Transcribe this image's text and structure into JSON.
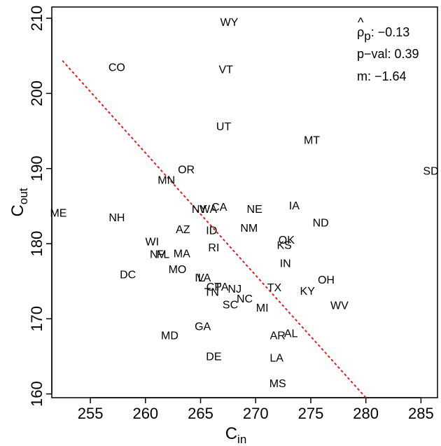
{
  "chart_data": {
    "type": "scatter",
    "title": "",
    "xlabel": {
      "main": "C",
      "sub": "in"
    },
    "ylabel": {
      "main": "C",
      "sub": "out"
    },
    "xlim": [
      251.5,
      286.5
    ],
    "ylim": [
      159.5,
      211.5
    ],
    "x_ticks": [
      255,
      260,
      265,
      270,
      275,
      280,
      285
    ],
    "y_ticks": [
      160,
      170,
      180,
      190,
      200,
      210
    ],
    "grid": false,
    "fit_line": {
      "style": "dotted",
      "color": "#e41a1c",
      "x": [
        252.5,
        280.0
      ],
      "y": [
        204.3,
        159.5
      ]
    },
    "annotations": [
      {
        "label_main": "ρ",
        "label_sub": "p",
        "label_hat": "^",
        "value": ": −0.13"
      },
      {
        "text": "p−val: 0.39"
      },
      {
        "text": "m:  −1.64"
      }
    ],
    "points": [
      {
        "label": "WY",
        "x": 267.6,
        "y": 209.4
      },
      {
        "label": "CO",
        "x": 257.4,
        "y": 203.4
      },
      {
        "label": "VT",
        "x": 267.3,
        "y": 203.1
      },
      {
        "label": "UT",
        "x": 267.1,
        "y": 195.5
      },
      {
        "label": "MT",
        "x": 275.1,
        "y": 193.7
      },
      {
        "label": "OR",
        "x": 263.7,
        "y": 189.8
      },
      {
        "label": "SD",
        "x": 285.9,
        "y": 189.6
      },
      {
        "label": "MN",
        "x": 261.9,
        "y": 188.4
      },
      {
        "label": "IA",
        "x": 273.5,
        "y": 185.0
      },
      {
        "label": "CA",
        "x": 266.7,
        "y": 184.8
      },
      {
        "label": "NY",
        "x": 264.9,
        "y": 184.5
      },
      {
        "label": "WA",
        "x": 265.7,
        "y": 184.5
      },
      {
        "label": "NE",
        "x": 269.9,
        "y": 184.5
      },
      {
        "label": "ME",
        "x": 252.1,
        "y": 184.0
      },
      {
        "label": "NH",
        "x": 257.4,
        "y": 183.4
      },
      {
        "label": "ND",
        "x": 275.9,
        "y": 182.7
      },
      {
        "label": "NM",
        "x": 269.4,
        "y": 182.0
      },
      {
        "label": "AZ",
        "x": 263.4,
        "y": 181.8
      },
      {
        "label": "ID",
        "x": 266.0,
        "y": 181.7
      },
      {
        "label": "OK",
        "x": 272.8,
        "y": 180.4
      },
      {
        "label": "WI",
        "x": 260.6,
        "y": 180.2
      },
      {
        "label": "KS",
        "x": 272.6,
        "y": 179.7
      },
      {
        "label": "RI",
        "x": 266.2,
        "y": 179.4
      },
      {
        "label": "MA",
        "x": 263.3,
        "y": 178.6
      },
      {
        "label": "NV",
        "x": 261.1,
        "y": 178.5
      },
      {
        "label": "FL",
        "x": 261.6,
        "y": 178.5
      },
      {
        "label": "IN",
        "x": 272.7,
        "y": 177.3
      },
      {
        "label": "MO",
        "x": 262.9,
        "y": 176.5
      },
      {
        "label": "DC",
        "x": 258.4,
        "y": 175.8
      },
      {
        "label": "IL",
        "x": 264.9,
        "y": 175.4
      },
      {
        "label": "VA",
        "x": 265.3,
        "y": 175.4
      },
      {
        "label": "OH",
        "x": 276.4,
        "y": 175.1
      },
      {
        "label": "CT",
        "x": 266.2,
        "y": 174.2
      },
      {
        "label": "PA",
        "x": 266.9,
        "y": 174.2
      },
      {
        "label": "TX",
        "x": 271.7,
        "y": 174.1
      },
      {
        "label": "NJ",
        "x": 268.1,
        "y": 173.9
      },
      {
        "label": "KY",
        "x": 274.7,
        "y": 173.6
      },
      {
        "label": "TN",
        "x": 266.0,
        "y": 173.5
      },
      {
        "label": "NC",
        "x": 269.0,
        "y": 172.6
      },
      {
        "label": "SC",
        "x": 267.7,
        "y": 171.8
      },
      {
        "label": "WV",
        "x": 277.6,
        "y": 171.7
      },
      {
        "label": "MI",
        "x": 270.6,
        "y": 171.4
      },
      {
        "label": "GA",
        "x": 265.2,
        "y": 168.9
      },
      {
        "label": "AL",
        "x": 273.2,
        "y": 168.0
      },
      {
        "label": "MD",
        "x": 262.2,
        "y": 167.7
      },
      {
        "label": "AR",
        "x": 272.0,
        "y": 167.7
      },
      {
        "label": "DE",
        "x": 266.2,
        "y": 164.9
      },
      {
        "label": "LA",
        "x": 271.9,
        "y": 164.7
      },
      {
        "label": "MS",
        "x": 272.0,
        "y": 161.3
      }
    ]
  }
}
